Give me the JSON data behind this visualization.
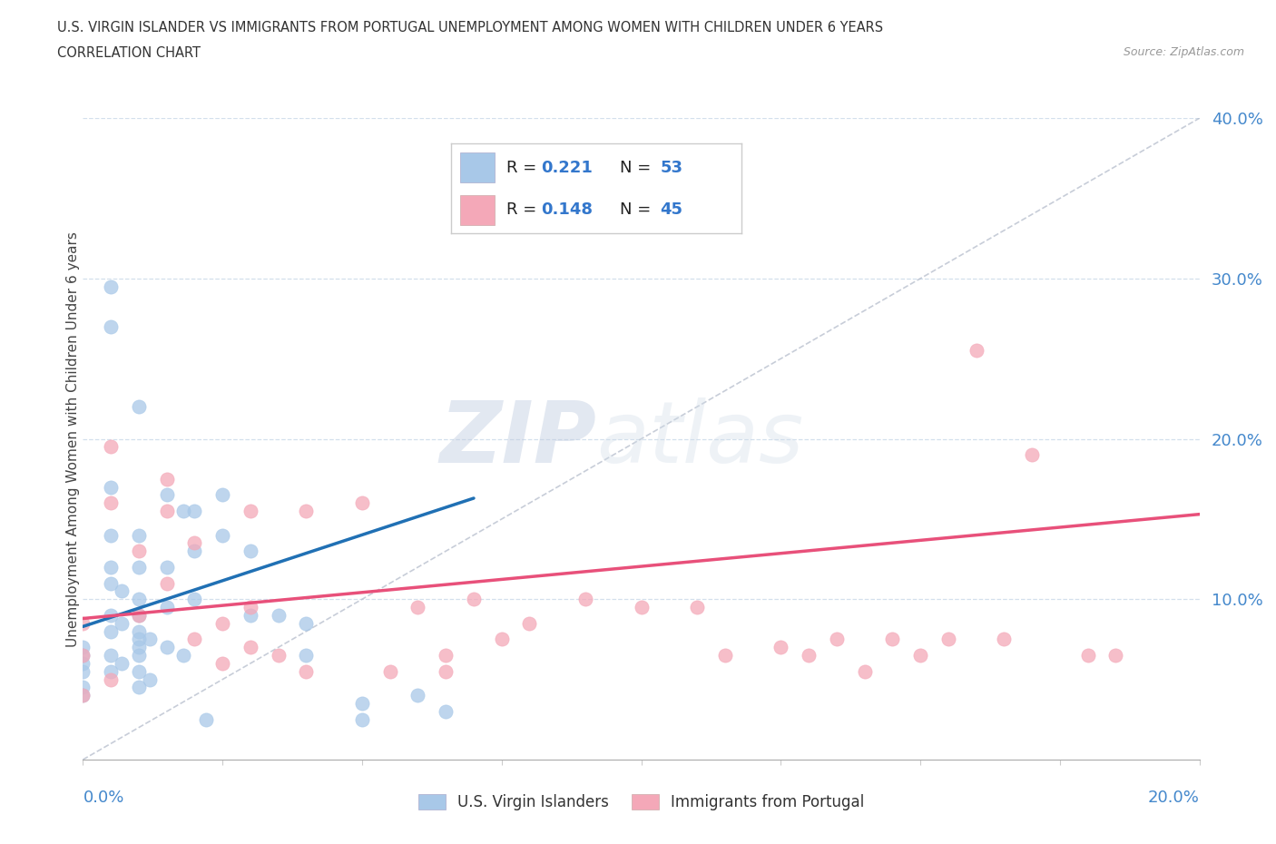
{
  "title_line1": "U.S. VIRGIN ISLANDER VS IMMIGRANTS FROM PORTUGAL UNEMPLOYMENT AMONG WOMEN WITH CHILDREN UNDER 6 YEARS",
  "title_line2": "CORRELATION CHART",
  "source_text": "Source: ZipAtlas.com",
  "ylabel": "Unemployment Among Women with Children Under 6 years",
  "watermark": "ZIPatlas",
  "color_blue": "#a8c8e8",
  "color_pink": "#f4a8b8",
  "trendline_blue": "#2070b4",
  "trendline_pink": "#e8507a",
  "legend_label1": "U.S. Virgin Islanders",
  "legend_label2": "Immigrants from Portugal",
  "xlim": [
    0.0,
    0.2
  ],
  "ylim": [
    0.0,
    0.4
  ],
  "yticks": [
    0.0,
    0.1,
    0.2,
    0.3,
    0.4
  ],
  "ytick_labels": [
    "",
    "10.0%",
    "20.0%",
    "30.0%",
    "40.0%"
  ],
  "blue_points_x": [
    0.0,
    0.0,
    0.0,
    0.0,
    0.0,
    0.0,
    0.005,
    0.005,
    0.005,
    0.005,
    0.005,
    0.005,
    0.005,
    0.005,
    0.005,
    0.005,
    0.01,
    0.01,
    0.01,
    0.01,
    0.01,
    0.01,
    0.01,
    0.01,
    0.01,
    0.01,
    0.01,
    0.015,
    0.015,
    0.015,
    0.015,
    0.02,
    0.02,
    0.02,
    0.025,
    0.025,
    0.03,
    0.03,
    0.035,
    0.04,
    0.04,
    0.05,
    0.05,
    0.06,
    0.065,
    0.007,
    0.007,
    0.007,
    0.012,
    0.012,
    0.018,
    0.018,
    0.022
  ],
  "blue_points_y": [
    0.07,
    0.065,
    0.06,
    0.055,
    0.045,
    0.04,
    0.295,
    0.27,
    0.17,
    0.14,
    0.12,
    0.11,
    0.09,
    0.08,
    0.065,
    0.055,
    0.22,
    0.14,
    0.12,
    0.1,
    0.09,
    0.08,
    0.075,
    0.07,
    0.065,
    0.055,
    0.045,
    0.165,
    0.12,
    0.095,
    0.07,
    0.155,
    0.13,
    0.1,
    0.165,
    0.14,
    0.13,
    0.09,
    0.09,
    0.085,
    0.065,
    0.035,
    0.025,
    0.04,
    0.03,
    0.105,
    0.085,
    0.06,
    0.075,
    0.05,
    0.155,
    0.065,
    0.025
  ],
  "pink_points_x": [
    0.0,
    0.0,
    0.0,
    0.005,
    0.005,
    0.005,
    0.01,
    0.01,
    0.015,
    0.015,
    0.015,
    0.02,
    0.02,
    0.025,
    0.025,
    0.03,
    0.03,
    0.03,
    0.04,
    0.04,
    0.05,
    0.055,
    0.065,
    0.065,
    0.07,
    0.08,
    0.09,
    0.1,
    0.11,
    0.115,
    0.125,
    0.13,
    0.135,
    0.14,
    0.145,
    0.15,
    0.155,
    0.165,
    0.17,
    0.18,
    0.035,
    0.06,
    0.075,
    0.16,
    0.185
  ],
  "pink_points_y": [
    0.085,
    0.065,
    0.04,
    0.195,
    0.16,
    0.05,
    0.13,
    0.09,
    0.175,
    0.155,
    0.11,
    0.135,
    0.075,
    0.085,
    0.06,
    0.155,
    0.095,
    0.07,
    0.155,
    0.055,
    0.16,
    0.055,
    0.065,
    0.055,
    0.1,
    0.085,
    0.1,
    0.095,
    0.095,
    0.065,
    0.07,
    0.065,
    0.075,
    0.055,
    0.075,
    0.065,
    0.075,
    0.075,
    0.19,
    0.065,
    0.065,
    0.095,
    0.075,
    0.255,
    0.065
  ],
  "blue_trend_x": [
    0.0,
    0.07
  ],
  "blue_trend_y": [
    0.083,
    0.163
  ],
  "pink_trend_x": [
    0.0,
    0.2
  ],
  "pink_trend_y": [
    0.088,
    0.153
  ],
  "dashed_line_x": [
    0.0,
    0.2
  ],
  "dashed_line_y": [
    0.0,
    0.4
  ]
}
